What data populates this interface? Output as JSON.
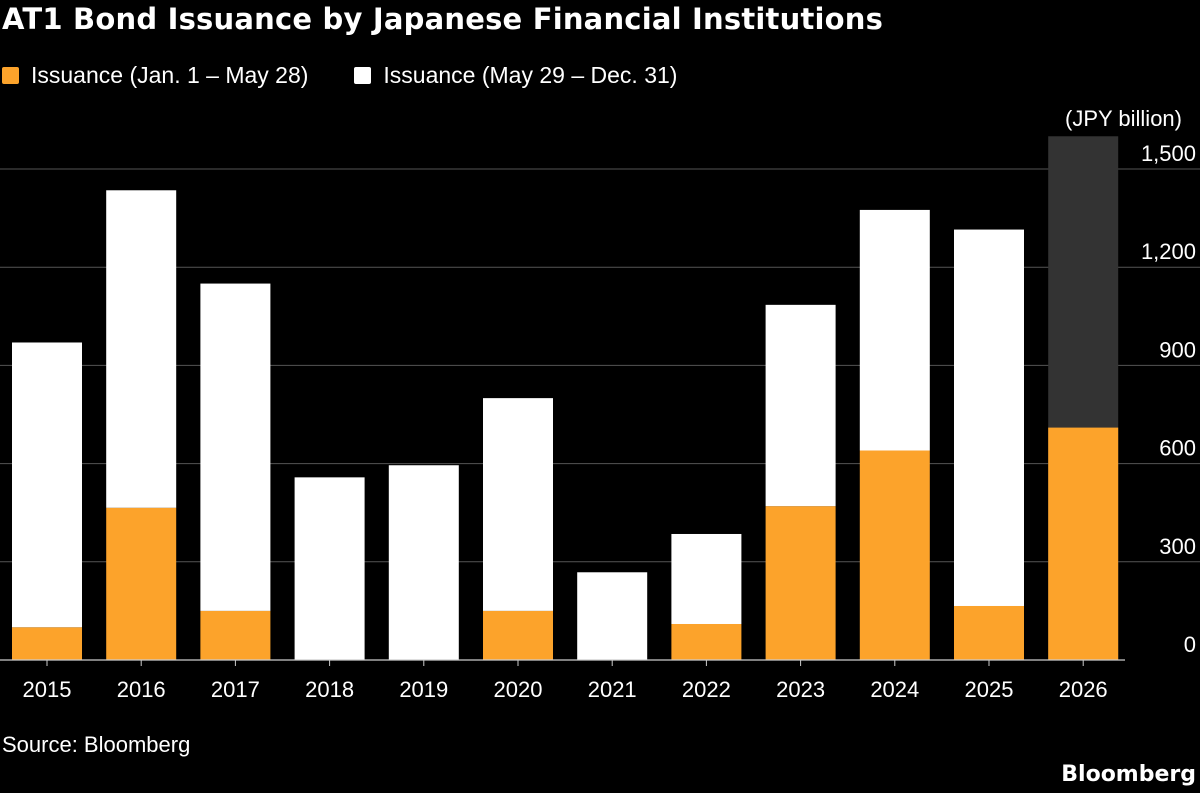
{
  "title": "AT1 Bond Issuance by Japanese Financial Institutions",
  "source": "Source: Bloomberg",
  "brand": "Bloomberg",
  "colors": {
    "background": "#000000",
    "series_1": "#fca32b",
    "series_2": "#ffffff",
    "projection": "#333333",
    "grid": "#555555",
    "text": "#ffffff"
  },
  "chart_data": {
    "type": "bar",
    "stacked": true,
    "unit_label": "(JPY billion)",
    "categories": [
      "2015",
      "2016",
      "2017",
      "2018",
      "2019",
      "2020",
      "2021",
      "2022",
      "2023",
      "2024",
      "2025",
      "2026"
    ],
    "series": [
      {
        "name": "Issuance (Jan. 1 – May 28)",
        "color": "#fca32b",
        "values": [
          100,
          465,
          150,
          0,
          0,
          150,
          0,
          110,
          470,
          640,
          165,
          710
        ]
      },
      {
        "name": "Issuance (May 29 – Dec. 31)",
        "color": "#ffffff",
        "values": [
          870,
          970,
          1000,
          558,
          595,
          650,
          268,
          275,
          615,
          735,
          1150,
          0
        ]
      }
    ],
    "projection_totals": [
      null,
      null,
      null,
      null,
      null,
      null,
      null,
      null,
      null,
      null,
      null,
      1600
    ],
    "ylim": [
      0,
      1600
    ],
    "yticks": [
      0,
      300,
      600,
      900,
      1200,
      1500
    ],
    "ytick_labels": [
      "0",
      "300",
      "600",
      "900",
      "1,200",
      "1,500"
    ],
    "grid": true,
    "axis_side": "right",
    "legend_position": "top-left"
  }
}
